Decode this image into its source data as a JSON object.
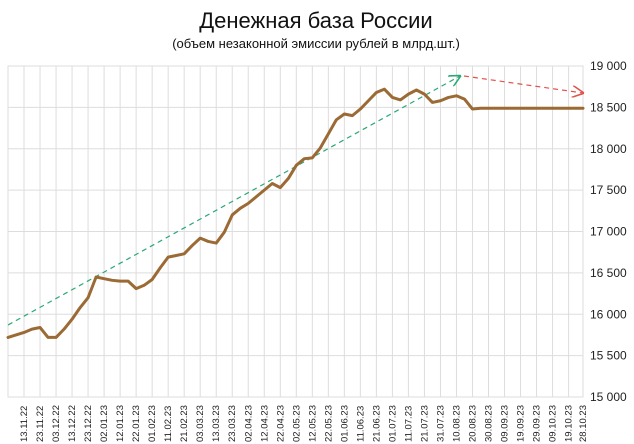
{
  "chart_data": {
    "type": "line",
    "title": "Денежная база России",
    "subtitle": "(объем незаконной эмиссии рублей в млрд.шт.)",
    "xlabel": "",
    "ylabel": "",
    "ylim": [
      15000,
      19000
    ],
    "yticks": [
      15000,
      15500,
      16000,
      16500,
      17000,
      17500,
      18000,
      18500,
      19000
    ],
    "ytick_labels": [
      "15 000",
      "15 500",
      "16 000",
      "16 500",
      "17 000",
      "17 500",
      "18 000",
      "18 500",
      "19 000"
    ],
    "grid": true,
    "x_tick_labels": [
      "13.11.22",
      "23.11.22",
      "03.12.22",
      "13.12.22",
      "23.12.22",
      "02.01.23",
      "12.01.23",
      "22.01.23",
      "01.02.23",
      "11.02.23",
      "21.02.23",
      "03.03.23",
      "13.03.23",
      "23.03.23",
      "02.04.23",
      "12.04.23",
      "22.04.23",
      "02.05.23",
      "12.05.23",
      "22.05.23",
      "01.06.23",
      "11.06.23",
      "21.06.23",
      "01.07.23",
      "11.07.23",
      "21.07.23",
      "31.07.23",
      "10.08.23",
      "20.08.23",
      "30.08.23",
      "09.09.23",
      "19.09.23",
      "29.09.23",
      "09.10.23",
      "19.10.23",
      "28.10.23"
    ],
    "series": [
      {
        "color": "#9b6a35",
        "x": [
          "2022-11-03",
          "2022-11-13",
          "2022-11-18",
          "2022-11-23",
          "2022-11-28",
          "2022-12-03",
          "2022-12-08",
          "2022-12-13",
          "2022-12-18",
          "2022-12-23",
          "2022-12-28",
          "2023-01-02",
          "2023-01-07",
          "2023-01-12",
          "2023-01-17",
          "2023-01-22",
          "2023-01-27",
          "2023-02-01",
          "2023-02-06",
          "2023-02-11",
          "2023-02-16",
          "2023-02-21",
          "2023-02-26",
          "2023-03-03",
          "2023-03-08",
          "2023-03-13",
          "2023-03-18",
          "2023-03-23",
          "2023-03-28",
          "2023-04-02",
          "2023-04-07",
          "2023-04-12",
          "2023-04-17",
          "2023-04-22",
          "2023-04-27",
          "2023-05-02",
          "2023-05-07",
          "2023-05-12",
          "2023-05-17",
          "2023-05-22",
          "2023-05-27",
          "2023-06-01",
          "2023-06-06",
          "2023-06-11",
          "2023-06-16",
          "2023-06-21",
          "2023-06-26",
          "2023-07-01",
          "2023-07-06",
          "2023-07-11",
          "2023-07-16",
          "2023-07-21",
          "2023-07-26",
          "2023-07-31",
          "2023-08-05",
          "2023-08-10",
          "2023-08-15",
          "2023-08-20",
          "2023-08-25",
          "2023-08-30",
          "2023-09-04",
          "2023-09-09",
          "2023-09-14",
          "2023-09-19",
          "2023-09-24",
          "2023-09-29",
          "2023-10-04",
          "2023-10-09",
          "2023-10-14",
          "2023-10-19",
          "2023-10-24",
          "2023-10-28"
        ],
        "values": [
          15720,
          15780,
          15820,
          15840,
          15720,
          15720,
          15820,
          15940,
          16080,
          16200,
          16450,
          16430,
          16410,
          16400,
          16400,
          16310,
          16350,
          16420,
          16560,
          16690,
          16710,
          16730,
          16830,
          16920,
          16880,
          16860,
          16990,
          17200,
          17280,
          17340,
          17420,
          17500,
          17580,
          17530,
          17640,
          17800,
          17880,
          17890,
          18010,
          18180,
          18350,
          18420,
          18400,
          18480,
          18580,
          18680,
          18720,
          18620,
          18590,
          18660,
          18710,
          18660,
          18560,
          18580,
          18620,
          18640,
          18600,
          18480,
          18490,
          18490,
          18490,
          18490,
          18490,
          18490,
          18490,
          18490,
          18490,
          18490,
          18490,
          18490,
          18490,
          18490
        ]
      }
    ]
  },
  "colors": {
    "background": "#ffffff",
    "grid": "#dddddd",
    "series_line": "#9b6a35",
    "upward_trend_arrow": "#2aa874",
    "downward_trend_arrow": "#e0524a"
  }
}
